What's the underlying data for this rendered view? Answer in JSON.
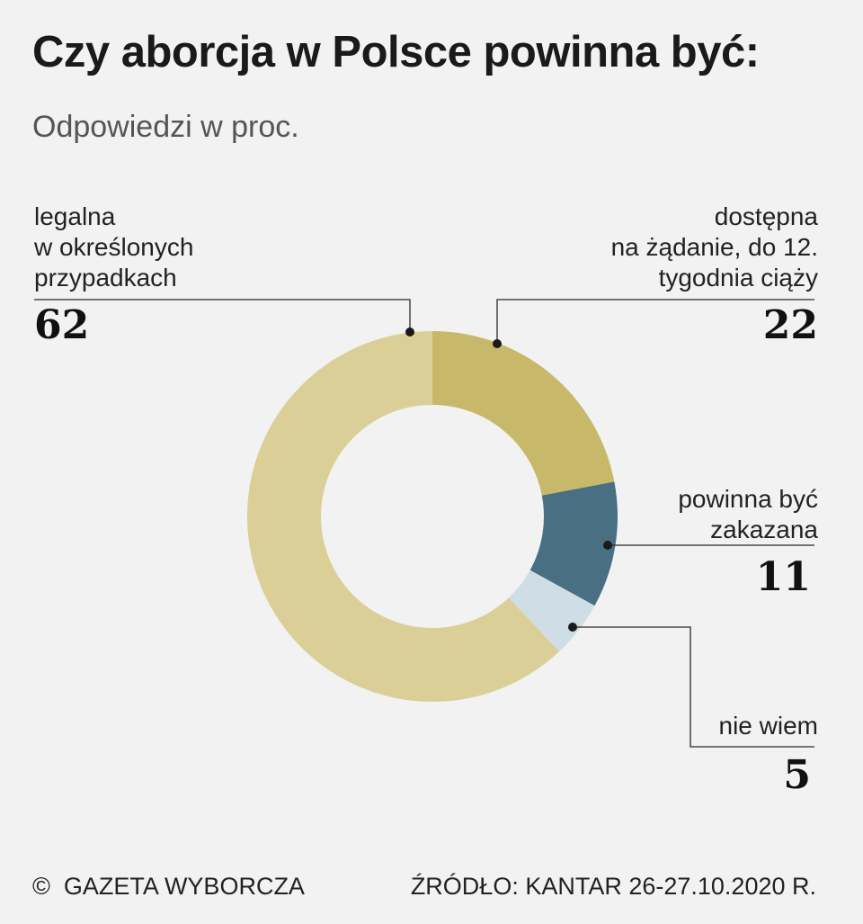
{
  "title": "Czy aborcja w Polsce powinna być:",
  "subtitle": "Odpowiedzi w proc.",
  "chart_data": {
    "type": "pie",
    "variant": "donut",
    "start_angle_deg": 0,
    "direction": "clockwise",
    "slices": [
      {
        "label_lines": [
          "dostępna",
          "na żądanie, do 12.",
          "tygodnia ciąży"
        ],
        "value": 22,
        "value_text": "22",
        "color": "#c8b86a"
      },
      {
        "label_lines": [
          "powinna być",
          "zakazana"
        ],
        "value": 11,
        "value_text": "11",
        "color": "#487082"
      },
      {
        "label_lines": [
          "nie wiem"
        ],
        "value": 5,
        "value_text": "5",
        "color": "#cfdde4"
      },
      {
        "label_lines": [
          "legalna",
          "w określonych",
          "przypadkach"
        ],
        "value": 62,
        "value_text": "62",
        "color": "#dbcf98"
      }
    ]
  },
  "footer": {
    "copyright_symbol": "©",
    "brand": "GAZETA WYBORCZA",
    "source": "ŹRÓDŁO: KANTAR 26-27.10.2020 R."
  }
}
